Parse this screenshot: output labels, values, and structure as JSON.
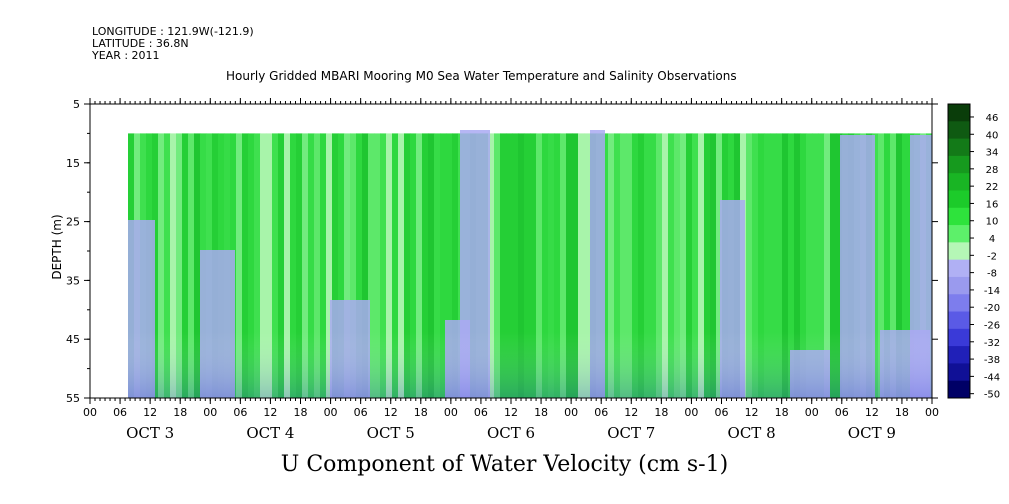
{
  "header": {
    "longitude": "LONGITUDE : 121.9W(-121.9)",
    "latitude": "LATITUDE : 36.8N",
    "year": "YEAR : 2011"
  },
  "chart_data": {
    "type": "heatmap",
    "title": "Hourly Gridded MBARI Mooring M0 Sea Water Temperature and Salinity Observations",
    "xlabel": "U Component of Water Velocity (cm s-1)",
    "ylabel": "DEPTH (m)",
    "ylim": [
      5,
      55
    ],
    "y_inverted": true,
    "y_ticks": [
      5,
      15,
      25,
      35,
      45,
      55
    ],
    "x_hour_ticks": [
      "00",
      "06",
      "12",
      "18",
      "00",
      "06",
      "12",
      "18",
      "00",
      "06",
      "12",
      "18",
      "00",
      "06",
      "12",
      "18",
      "00",
      "06",
      "12",
      "18",
      "00",
      "06",
      "12",
      "18",
      "00",
      "06",
      "12",
      "18",
      "00"
    ],
    "x_day_labels": [
      "OCT  3",
      "OCT  4",
      "OCT  5",
      "OCT  6",
      "OCT  7",
      "OCT  8",
      "OCT  9"
    ],
    "data_depth_range": [
      10,
      55
    ],
    "colorbar_levels": [
      "46",
      "40",
      "34",
      "28",
      "22",
      "16",
      "10",
      "4",
      "-2",
      "-8",
      "-14",
      "-20",
      "-26",
      "-32",
      "-38",
      "-44",
      "-50"
    ],
    "colorbar_colors": [
      "#0a3d0a",
      "#0f5a12",
      "#137a18",
      "#169a1e",
      "#19b524",
      "#1ccb2a",
      "#2ee33c",
      "#5df06a",
      "#b5f7b6",
      "#b0b0f4",
      "#9a9aee",
      "#7d7ded",
      "#5a5ae6",
      "#3a3ad8",
      "#2020b8",
      "#101096",
      "#000066"
    ],
    "grid": false
  }
}
